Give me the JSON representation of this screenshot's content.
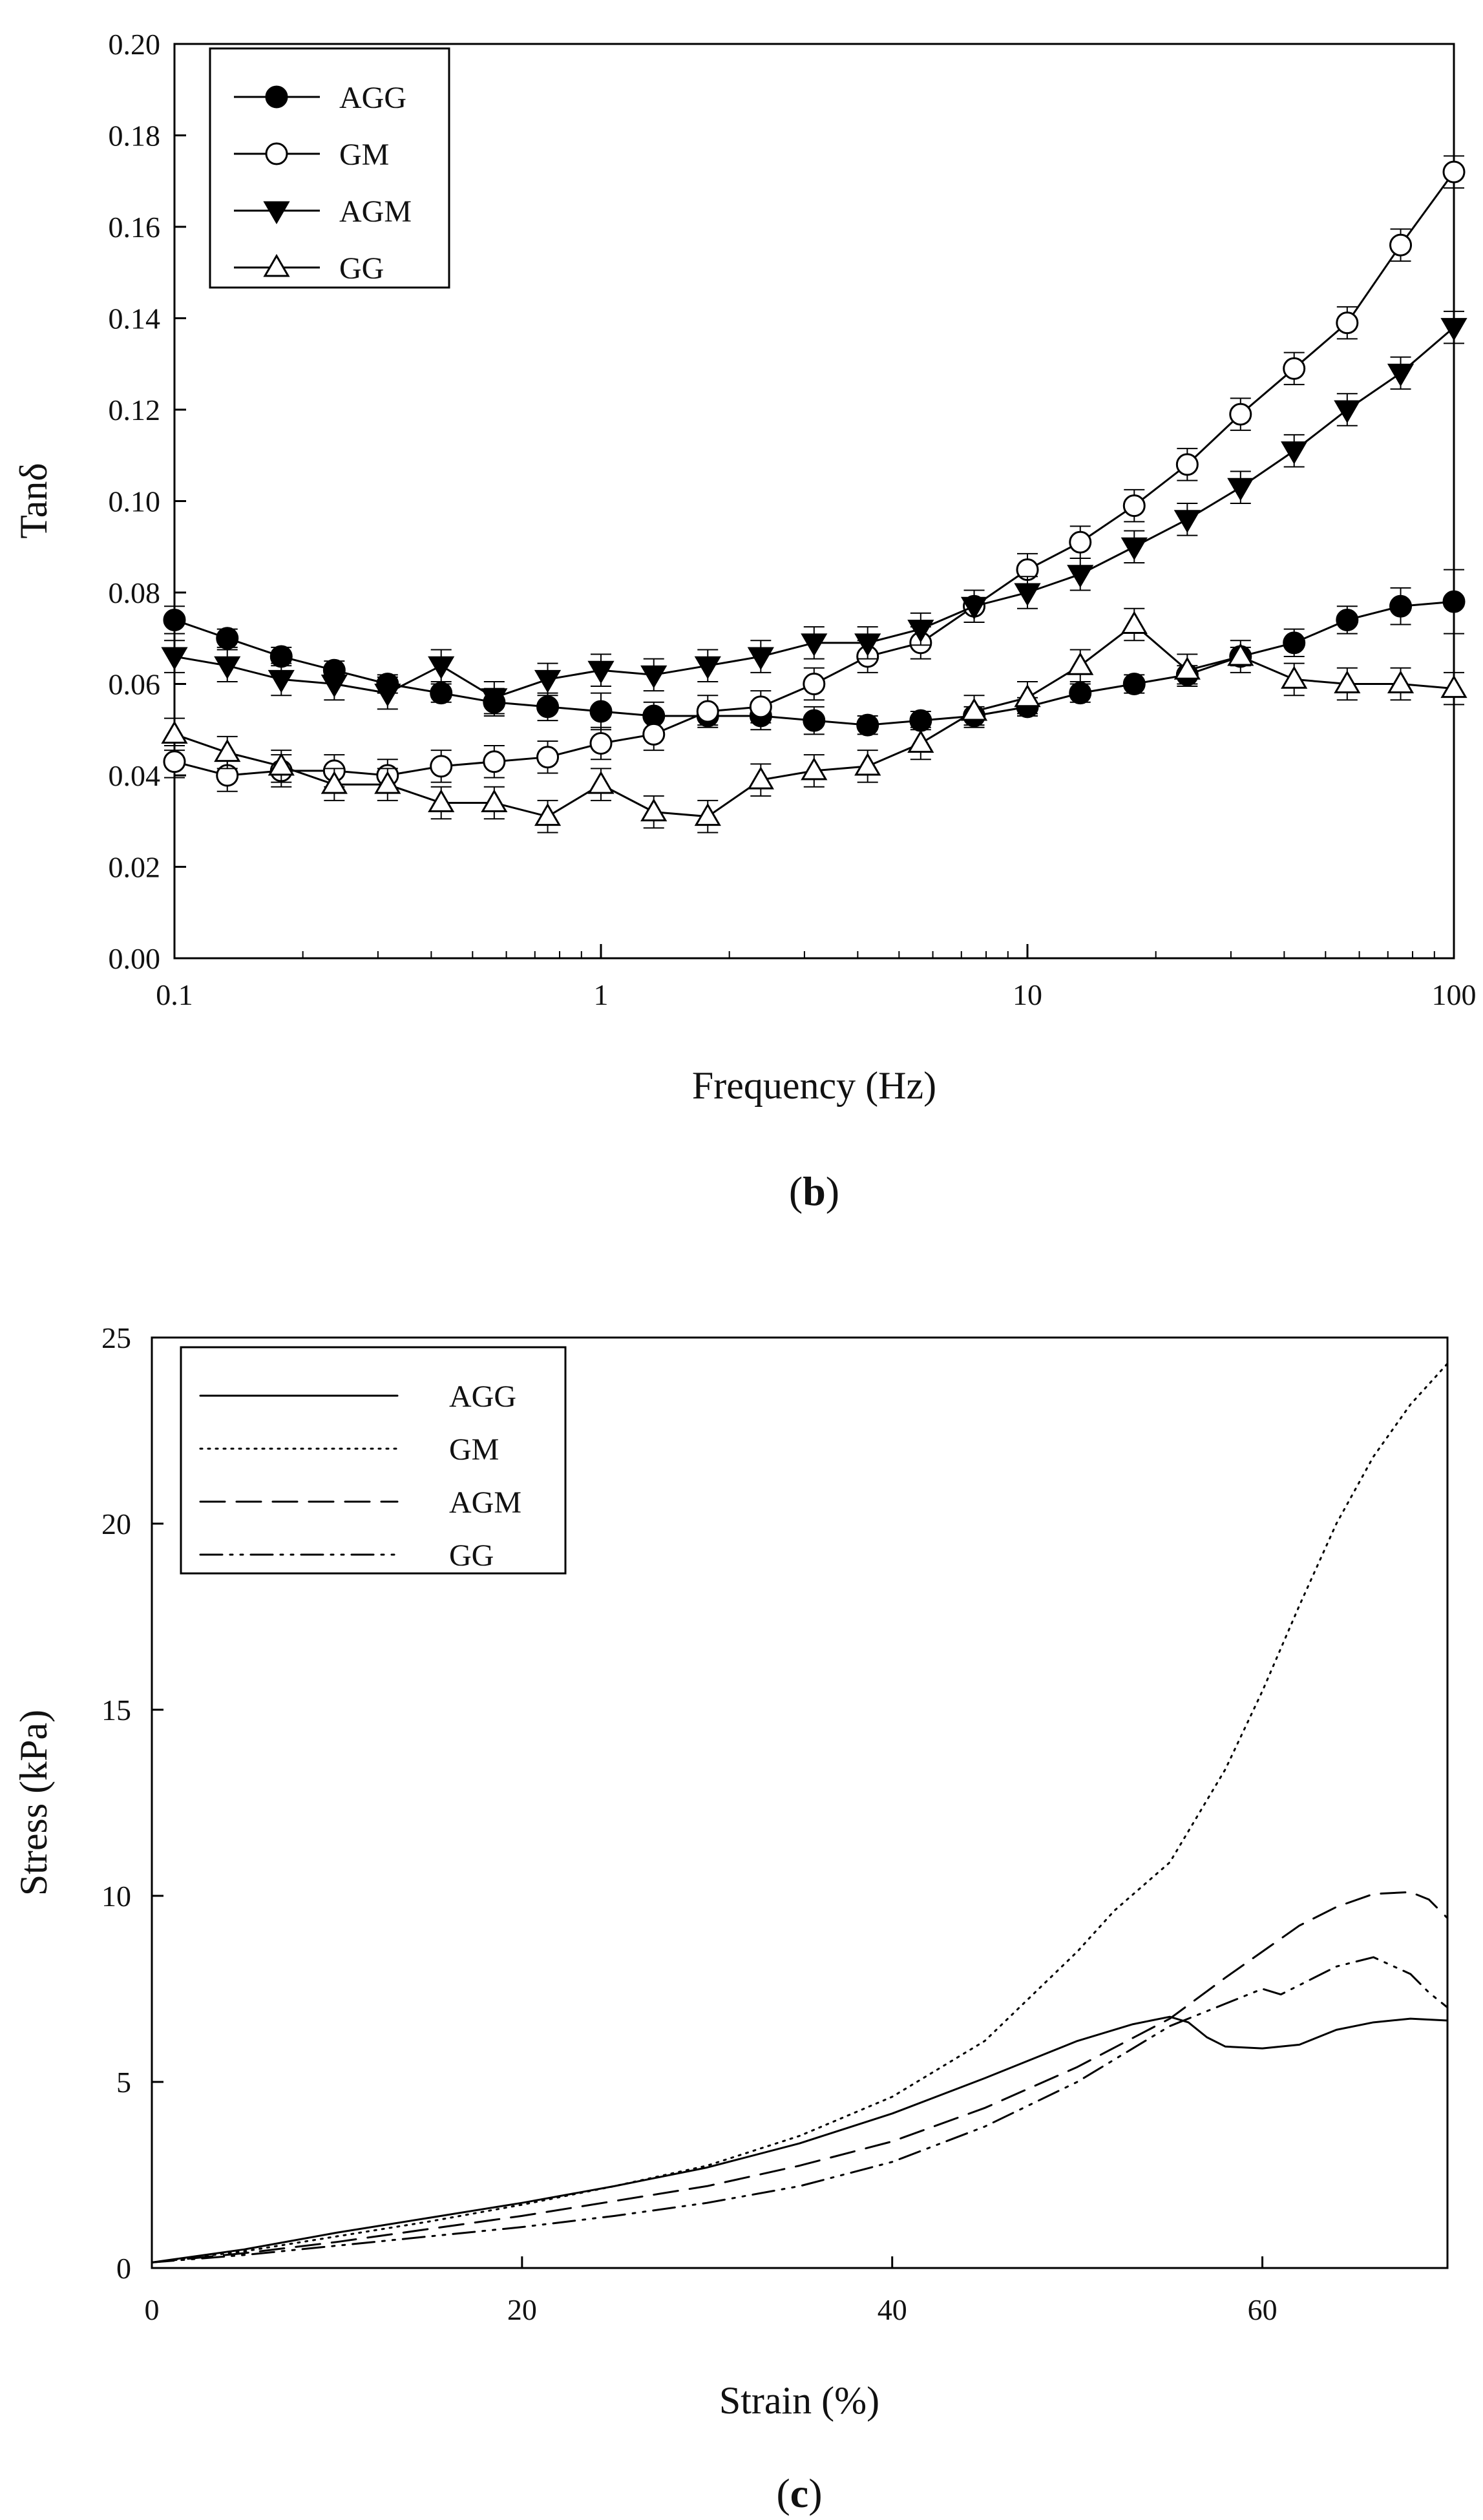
{
  "chart_data": [
    {
      "type": "line",
      "panel_label": "b",
      "xlabel": "Frequency (Hz)",
      "ylabel": "Tanδ",
      "xscale": "log",
      "xlim": [
        0.1,
        100
      ],
      "ylim": [
        0,
        0.2
      ],
      "xticks": [
        0.1,
        1,
        10,
        100
      ],
      "xtick_labels": [
        "0.1",
        "1",
        "10",
        "100"
      ],
      "yticks": [
        0,
        0.02,
        0.04,
        0.06,
        0.08,
        0.1,
        0.12,
        0.14,
        0.16,
        0.18,
        0.2
      ],
      "ytick_labels": [
        "0.00",
        "0.02",
        "0.04",
        "0.06",
        "0.08",
        "0.10",
        "0.12",
        "0.14",
        "0.16",
        "0.18",
        "0.20"
      ],
      "legend_position": "top-left",
      "x": [
        0.1,
        0.133,
        0.178,
        0.237,
        0.316,
        0.422,
        0.562,
        0.75,
        1.0,
        1.33,
        1.78,
        2.37,
        3.16,
        4.22,
        5.62,
        7.5,
        10,
        13.3,
        17.8,
        23.7,
        31.6,
        42.2,
        56.2,
        75,
        100
      ],
      "series": [
        {
          "name": "AGG",
          "marker": "filled-circle",
          "values": [
            0.074,
            0.07,
            0.066,
            0.063,
            0.06,
            0.058,
            0.056,
            0.055,
            0.054,
            0.053,
            0.053,
            0.053,
            0.052,
            0.051,
            0.052,
            0.053,
            0.055,
            0.058,
            0.06,
            0.062,
            0.066,
            0.069,
            0.074,
            0.077,
            0.078
          ],
          "errors": [
            0.003,
            0.002,
            0.002,
            0.002,
            0.002,
            0.002,
            0.003,
            0.003,
            0.004,
            0.003,
            0.002,
            0.003,
            0.003,
            0.002,
            0.002,
            0.002,
            0.002,
            0.002,
            0.002,
            0.002,
            0.002,
            0.003,
            0.003,
            0.004,
            0.007
          ]
        },
        {
          "name": "GM",
          "marker": "open-circle",
          "values": [
            0.043,
            0.04,
            0.041,
            0.041,
            0.04,
            0.042,
            0.043,
            0.044,
            0.047,
            0.049,
            0.054,
            0.055,
            0.06,
            0.066,
            0.069,
            0.077,
            0.085,
            0.091,
            0.099,
            0.108,
            0.119,
            0.129,
            0.139,
            0.156,
            0.172
          ]
        },
        {
          "name": "AGM",
          "marker": "filled-triangle-down",
          "values": [
            0.066,
            0.064,
            0.061,
            0.06,
            0.058,
            0.064,
            0.057,
            0.061,
            0.063,
            0.062,
            0.064,
            0.066,
            0.069,
            0.069,
            0.072,
            0.077,
            0.08,
            0.084,
            0.09,
            0.096,
            0.103,
            0.111,
            0.12,
            0.128,
            0.138
          ]
        },
        {
          "name": "GG",
          "marker": "open-triangle-up",
          "values": [
            0.049,
            0.045,
            0.042,
            0.038,
            0.038,
            0.034,
            0.034,
            0.031,
            0.038,
            0.032,
            0.031,
            0.039,
            0.041,
            0.042,
            0.047,
            0.054,
            0.057,
            0.064,
            0.073,
            0.063,
            0.066,
            0.061,
            0.06,
            0.06,
            0.059
          ]
        }
      ]
    },
    {
      "type": "line",
      "panel_label": "c",
      "xlabel": "Strain (%)",
      "ylabel": "Stress (kPa)",
      "xlim": [
        0,
        70
      ],
      "ylim": [
        0,
        25
      ],
      "xticks": [
        0,
        20,
        40,
        60
      ],
      "xtick_labels": [
        "0",
        "20",
        "40",
        "60"
      ],
      "yticks": [
        0,
        5,
        10,
        15,
        20,
        25
      ],
      "ytick_labels": [
        "0",
        "5",
        "10",
        "15",
        "20",
        "25"
      ],
      "legend_position": "top-left",
      "series": [
        {
          "name": "AGG",
          "line_style": "solid",
          "x": [
            0,
            5,
            10,
            15,
            20,
            25,
            30,
            35,
            40,
            45,
            50,
            53,
            55,
            56,
            57,
            58,
            60,
            62,
            64,
            66,
            68,
            70
          ],
          "y": [
            0.15,
            0.5,
            0.95,
            1.35,
            1.75,
            2.2,
            2.7,
            3.35,
            4.15,
            5.1,
            6.1,
            6.55,
            6.75,
            6.6,
            6.2,
            5.95,
            5.9,
            6.0,
            6.4,
            6.6,
            6.7,
            6.65
          ]
        },
        {
          "name": "GM",
          "line_style": "dotted",
          "x": [
            0,
            5,
            10,
            15,
            20,
            25,
            30,
            35,
            40,
            45,
            50,
            52,
            55,
            58,
            60,
            62,
            64,
            66,
            68,
            70
          ],
          "y": [
            0.15,
            0.45,
            0.85,
            1.25,
            1.7,
            2.2,
            2.75,
            3.55,
            4.6,
            6.1,
            8.5,
            9.6,
            10.9,
            13.4,
            15.5,
            17.8,
            20.0,
            21.8,
            23.2,
            24.3
          ]
        },
        {
          "name": "AGM",
          "line_style": "dashed",
          "x": [
            0,
            5,
            10,
            15,
            20,
            25,
            30,
            35,
            40,
            45,
            50,
            55,
            58,
            60,
            62,
            64,
            66,
            68,
            69,
            70
          ],
          "y": [
            0.15,
            0.4,
            0.7,
            1.05,
            1.4,
            1.8,
            2.2,
            2.75,
            3.4,
            4.3,
            5.4,
            6.7,
            7.8,
            8.5,
            9.2,
            9.7,
            10.05,
            10.1,
            9.9,
            9.4
          ]
        },
        {
          "name": "GG",
          "line_style": "dash-dot-dot",
          "x": [
            0,
            5,
            10,
            15,
            20,
            25,
            30,
            35,
            40,
            45,
            50,
            55,
            58,
            60,
            61,
            62,
            64,
            66,
            68,
            69,
            70
          ],
          "y": [
            0.15,
            0.35,
            0.6,
            0.85,
            1.1,
            1.4,
            1.75,
            2.2,
            2.85,
            3.8,
            5.0,
            6.5,
            7.1,
            7.5,
            7.35,
            7.6,
            8.1,
            8.35,
            7.9,
            7.4,
            7.0
          ]
        }
      ]
    }
  ]
}
